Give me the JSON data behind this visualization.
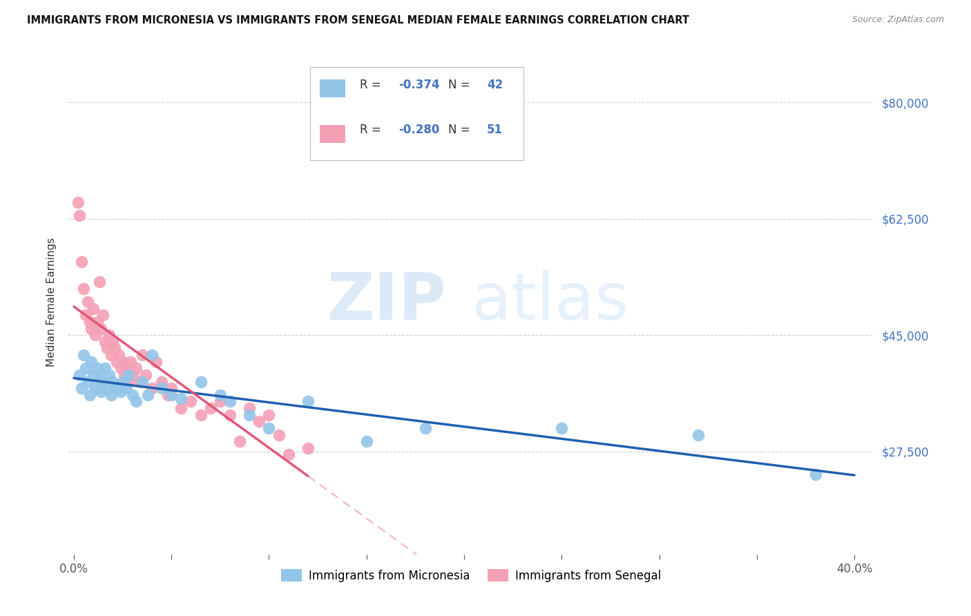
{
  "title": "IMMIGRANTS FROM MICRONESIA VS IMMIGRANTS FROM SENEGAL MEDIAN FEMALE EARNINGS CORRELATION CHART",
  "source": "Source: ZipAtlas.com",
  "ylabel": "Median Female Earnings",
  "ytick_values": [
    27500,
    45000,
    62500,
    80000
  ],
  "ylim": [
    12000,
    88000
  ],
  "xlim": [
    -0.003,
    0.41
  ],
  "legend_label1": "Immigrants from Micronesia",
  "legend_label2": "Immigrants from Senegal",
  "R1": -0.374,
  "N1": 42,
  "R2": -0.28,
  "N2": 51,
  "color_blue": "#92C5E8",
  "color_pink": "#F4A0B5",
  "line_blue": "#2060B0",
  "line_pink": "#E05878",
  "watermark_zip": "ZIP",
  "watermark_atlas": "atlas",
  "mic_x": [
    0.003,
    0.004,
    0.005,
    0.006,
    0.007,
    0.008,
    0.009,
    0.01,
    0.011,
    0.012,
    0.013,
    0.014,
    0.015,
    0.016,
    0.017,
    0.018,
    0.019,
    0.02,
    0.022,
    0.024,
    0.025,
    0.027,
    0.028,
    0.03,
    0.032,
    0.035,
    0.038,
    0.04,
    0.045,
    0.05,
    0.055,
    0.065,
    0.075,
    0.08,
    0.09,
    0.1,
    0.12,
    0.15,
    0.18,
    0.25,
    0.32,
    0.38
  ],
  "mic_y": [
    39000,
    37000,
    42000,
    40000,
    38000,
    36000,
    41000,
    39000,
    37000,
    40000,
    38500,
    36500,
    38000,
    40000,
    37000,
    39000,
    36000,
    38000,
    37000,
    36500,
    38000,
    37000,
    39000,
    36000,
    35000,
    38000,
    36000,
    42000,
    37000,
    36000,
    35500,
    38000,
    36000,
    35000,
    33000,
    31000,
    35000,
    29000,
    31000,
    31000,
    30000,
    24000
  ],
  "sen_x": [
    0.002,
    0.003,
    0.004,
    0.005,
    0.006,
    0.007,
    0.008,
    0.009,
    0.01,
    0.011,
    0.012,
    0.013,
    0.014,
    0.015,
    0.016,
    0.017,
    0.018,
    0.019,
    0.02,
    0.021,
    0.022,
    0.023,
    0.024,
    0.025,
    0.026,
    0.027,
    0.028,
    0.029,
    0.03,
    0.032,
    0.034,
    0.035,
    0.037,
    0.04,
    0.042,
    0.045,
    0.048,
    0.05,
    0.055,
    0.06,
    0.065,
    0.07,
    0.075,
    0.08,
    0.085,
    0.09,
    0.095,
    0.1,
    0.105,
    0.11,
    0.12
  ],
  "sen_y": [
    65000,
    63000,
    56000,
    52000,
    48000,
    50000,
    47000,
    46000,
    49000,
    45000,
    47000,
    53000,
    46000,
    48000,
    44000,
    43000,
    45000,
    42000,
    44000,
    43000,
    41000,
    42000,
    40000,
    41000,
    39000,
    40000,
    38000,
    41000,
    39000,
    40000,
    38000,
    42000,
    39000,
    37000,
    41000,
    38000,
    36000,
    37000,
    34000,
    35000,
    33000,
    34000,
    35000,
    33000,
    29000,
    34000,
    32000,
    33000,
    30000,
    27000,
    28000
  ]
}
